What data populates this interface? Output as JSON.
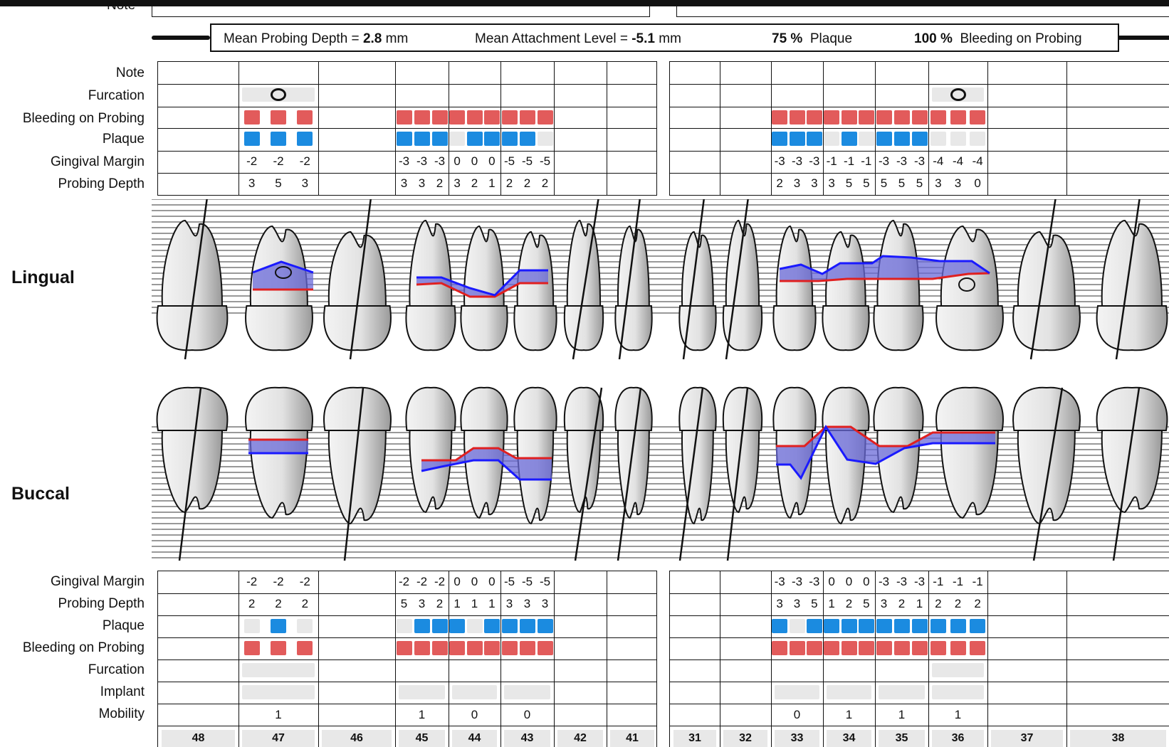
{
  "summary": {
    "mean_pd_label": "Mean Probing Depth =",
    "mean_pd_value": "2.8",
    "mean_pd_unit": "mm",
    "mean_al_label": "Mean Attachment Level =",
    "mean_al_value": "-5.1",
    "mean_al_unit": "mm",
    "plaque_value": "75 %",
    "plaque_label": "Plaque",
    "bleeding_value": "100 %",
    "bleeding_label": "Bleeding on Probing"
  },
  "top_partial_label": "Note",
  "lingual_rows": [
    "Note",
    "Furcation",
    "Bleeding on Probing",
    "Plaque",
    "Gingival Margin",
    "Probing Depth"
  ],
  "buccal_rows": [
    "Gingival Margin",
    "Probing Depth",
    "Plaque",
    "Bleeding on Probing",
    "Furcation",
    "Implant",
    "Mobility"
  ],
  "side_labels": {
    "lingual": "Lingual",
    "buccal": "Buccal"
  },
  "teeth": [
    "48",
    "47",
    "46",
    "45",
    "44",
    "43",
    "42",
    "41",
    "31",
    "32",
    "33",
    "34",
    "35",
    "36",
    "37",
    "38"
  ],
  "lingual_values": {
    "47": {
      "gm": [
        "-2",
        "-2",
        "-2"
      ],
      "pd": [
        "3",
        "5",
        "3"
      ]
    },
    "45": {
      "gm": [
        "-3",
        "-3",
        "-3"
      ],
      "pd": [
        "3",
        "3",
        "2"
      ]
    },
    "44": {
      "gm": [
        "0",
        "0",
        "0"
      ],
      "pd": [
        "3",
        "2",
        "1"
      ]
    },
    "43": {
      "gm": [
        "-5",
        "-5",
        "-5"
      ],
      "pd": [
        "2",
        "2",
        "2"
      ]
    },
    "33": {
      "gm": [
        "-3",
        "-3",
        "-3"
      ],
      "pd": [
        "2",
        "3",
        "3"
      ]
    },
    "34": {
      "gm": [
        "-1",
        "-1",
        "-1"
      ],
      "pd": [
        "3",
        "5",
        "5"
      ]
    },
    "35": {
      "gm": [
        "-3",
        "-3",
        "-3"
      ],
      "pd": [
        "5",
        "5",
        "5"
      ]
    },
    "36": {
      "gm": [
        "-4",
        "-4",
        "-4"
      ],
      "pd": [
        "3",
        "3",
        "0"
      ]
    }
  },
  "buccal_values": {
    "47": {
      "gm": [
        "-2",
        "-2",
        "-2"
      ],
      "pd": [
        "2",
        "2",
        "2"
      ],
      "mob": "1"
    },
    "45": {
      "gm": [
        "-2",
        "-2",
        "-2"
      ],
      "pd": [
        "5",
        "3",
        "2"
      ],
      "mob": "1"
    },
    "44": {
      "gm": [
        "0",
        "0",
        "0"
      ],
      "pd": [
        "1",
        "1",
        "1"
      ],
      "mob": "0"
    },
    "43": {
      "gm": [
        "-5",
        "-5",
        "-5"
      ],
      "pd": [
        "3",
        "3",
        "3"
      ],
      "mob": "0"
    },
    "33": {
      "gm": [
        "-3",
        "-3",
        "-3"
      ],
      "pd": [
        "3",
        "3",
        "5"
      ],
      "mob": "0"
    },
    "34": {
      "gm": [
        "0",
        "0",
        "0"
      ],
      "pd": [
        "1",
        "2",
        "5"
      ],
      "mob": "1"
    },
    "35": {
      "gm": [
        "-3",
        "-3",
        "-3"
      ],
      "pd": [
        "3",
        "2",
        "1"
      ],
      "mob": "1"
    },
    "36": {
      "gm": [
        "-1",
        "-1",
        "-1"
      ],
      "pd": [
        "2",
        "2",
        "2"
      ],
      "mob": "1"
    }
  },
  "colors": {
    "bleeding": "#e25b5b",
    "plaque": "#1b8be0",
    "empty": "#e8e8e8",
    "gm_line": "#e02020",
    "pd_line": "#1a1aff",
    "pocket_fill": "#6a6ad8"
  }
}
